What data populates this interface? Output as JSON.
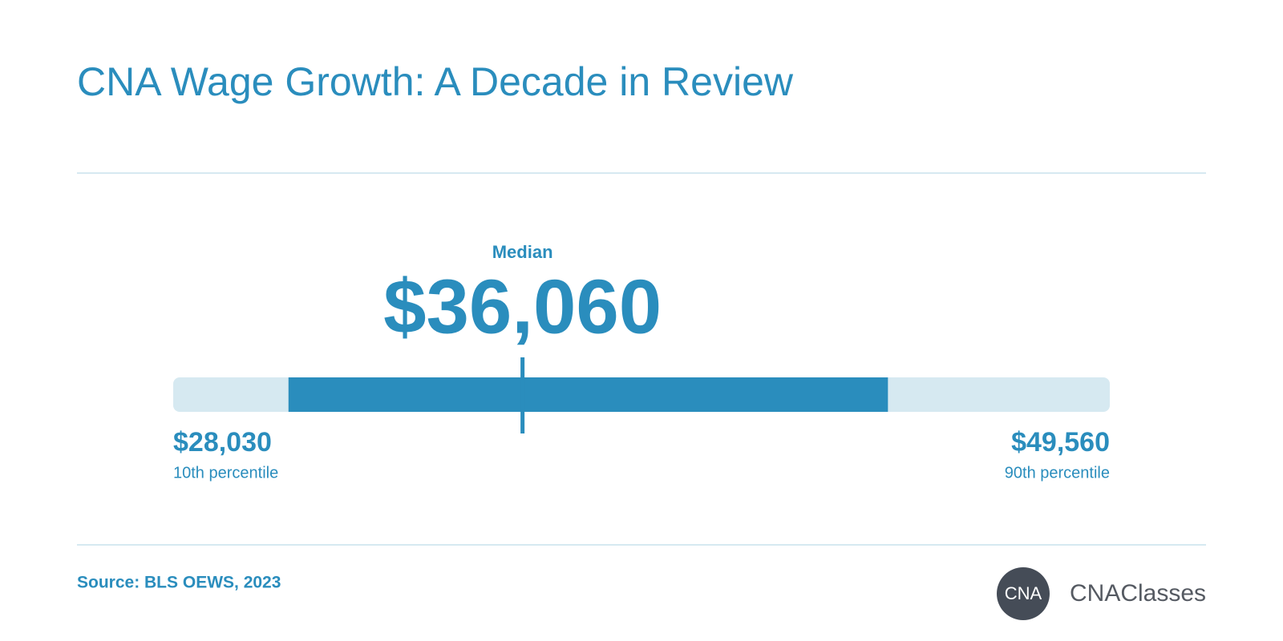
{
  "chart_data": {
    "type": "range",
    "title": "CNA Wage Growth: A Decade in Review",
    "median": {
      "label": "Median",
      "value": 36060,
      "value_label": "$36,060"
    },
    "low": {
      "label": "10th percentile",
      "value": 28030,
      "value_label": "$28,030"
    },
    "high": {
      "label": "90th percentile",
      "value": 49560,
      "value_label": "$49,560"
    },
    "band": {
      "values": [
        30680,
        44460
      ],
      "color": "#2a8dbd"
    },
    "track_color": "#d6e9f1",
    "color": "#2a8dbd",
    "source": "Source: BLS OEWS, 2023",
    "logo": {
      "badge": "CNA",
      "name": "CNAClasses"
    }
  }
}
